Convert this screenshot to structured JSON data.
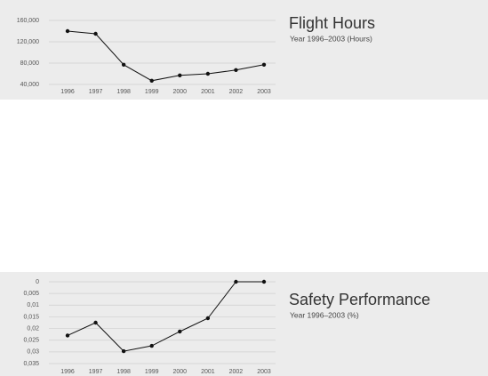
{
  "chart_data": [
    {
      "type": "line",
      "title": "Flight Hours",
      "subtitle": "Year 1996–2003 (Hours)",
      "categories": [
        "1996",
        "1997",
        "1998",
        "1999",
        "2000",
        "2001",
        "2002",
        "2003"
      ],
      "values": [
        140000,
        135000,
        77000,
        47000,
        57000,
        60000,
        67000,
        77000
      ],
      "color": "#111111",
      "ylim": [
        40000,
        160000
      ],
      "yticks": [
        {
          "value": 40000,
          "label": "40,000"
        },
        {
          "value": 80000,
          "label": "80,000"
        },
        {
          "value": 120000,
          "label": "120,000"
        },
        {
          "value": 160000,
          "label": "160,000"
        }
      ],
      "grid": true,
      "inverted": false
    },
    {
      "type": "line",
      "title": "Safety Performance",
      "subtitle": "Year 1996–2003 (%)",
      "categories": [
        "1996",
        "1997",
        "1998",
        "1999",
        "2000",
        "2001",
        "2002",
        "2003"
      ],
      "values": [
        0.023,
        0.0175,
        0.0297,
        0.0274,
        0.0213,
        0.0156,
        0,
        0
      ],
      "color": "#111111",
      "ylim": [
        0,
        0.035
      ],
      "yticks": [
        0,
        {
          "value": 0.005,
          "label": "0,005"
        },
        {
          "value": 0.01,
          "label": "0,01"
        },
        {
          "value": 0.015,
          "label": "0,015"
        },
        {
          "value": 0.02,
          "label": "0,02"
        },
        {
          "value": 0.025,
          "label": "0,025"
        },
        {
          "value": 0.03,
          "label": "0,03"
        },
        {
          "value": 0.035,
          "label": "0,035"
        }
      ],
      "grid": true,
      "inverted": true
    }
  ]
}
